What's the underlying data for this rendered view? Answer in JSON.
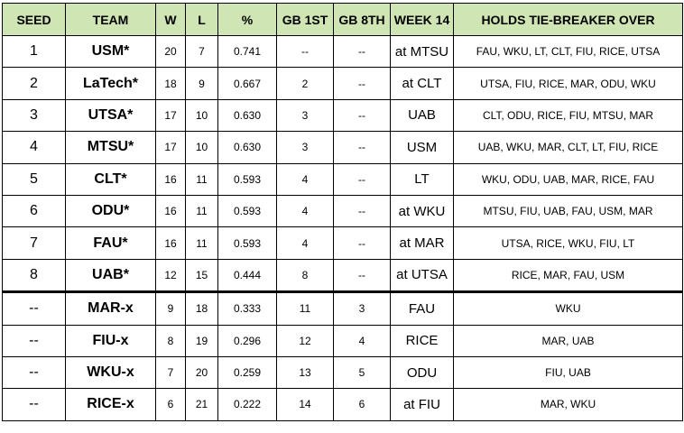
{
  "headers": {
    "seed": "SEED",
    "team": "TEAM",
    "w": "W",
    "l": "L",
    "pct": "%",
    "gb1": "GB 1ST",
    "gb8": "GB 8TH",
    "week": "WEEK 14",
    "tb": "HOLDS TIE-BREAKER OVER"
  },
  "rows": [
    {
      "seed": "1",
      "team": "USM*",
      "w": "20",
      "l": "7",
      "pct": "0.741",
      "gb1": "--",
      "gb8": "--",
      "week": "at MTSU",
      "tb": "FAU, WKU, LT, CLT, FIU, RICE, UTSA"
    },
    {
      "seed": "2",
      "team": "LaTech*",
      "w": "18",
      "l": "9",
      "pct": "0.667",
      "gb1": "2",
      "gb8": "--",
      "week": "at CLT",
      "tb": "UTSA, FIU, RICE, MAR, ODU, WKU"
    },
    {
      "seed": "3",
      "team": "UTSA*",
      "w": "17",
      "l": "10",
      "pct": "0.630",
      "gb1": "3",
      "gb8": "--",
      "week": "UAB",
      "tb": "CLT, ODU, RICE, FIU, MTSU, MAR"
    },
    {
      "seed": "4",
      "team": "MTSU*",
      "w": "17",
      "l": "10",
      "pct": "0.630",
      "gb1": "3",
      "gb8": "--",
      "week": "USM",
      "tb": "UAB, WKU, MAR, CLT, LT, FIU, RICE"
    },
    {
      "seed": "5",
      "team": "CLT*",
      "w": "16",
      "l": "11",
      "pct": "0.593",
      "gb1": "4",
      "gb8": "--",
      "week": "LT",
      "tb": "WKU, ODU, UAB, MAR, RICE, FAU"
    },
    {
      "seed": "6",
      "team": "ODU*",
      "w": "16",
      "l": "11",
      "pct": "0.593",
      "gb1": "4",
      "gb8": "--",
      "week": "at WKU",
      "tb": "MTSU, FIU, UAB, FAU, USM, MAR"
    },
    {
      "seed": "7",
      "team": "FAU*",
      "w": "16",
      "l": "11",
      "pct": "0.593",
      "gb1": "4",
      "gb8": "--",
      "week": "at MAR",
      "tb": "UTSA, RICE, WKU, FIU, LT"
    },
    {
      "seed": "8",
      "team": "UAB*",
      "w": "12",
      "l": "15",
      "pct": "0.444",
      "gb1": "8",
      "gb8": "--",
      "week": "at UTSA",
      "tb": "RICE, MAR, FAU, USM"
    },
    {
      "seed": "--",
      "team": "MAR-x",
      "w": "9",
      "l": "18",
      "pct": "0.333",
      "gb1": "11",
      "gb8": "3",
      "week": "FAU",
      "tb": "WKU"
    },
    {
      "seed": "--",
      "team": "FIU-x",
      "w": "8",
      "l": "19",
      "pct": "0.296",
      "gb1": "12",
      "gb8": "4",
      "week": "RICE",
      "tb": "MAR, UAB"
    },
    {
      "seed": "--",
      "team": "WKU-x",
      "w": "7",
      "l": "20",
      "pct": "0.259",
      "gb1": "13",
      "gb8": "5",
      "week": "ODU",
      "tb": "FIU, UAB"
    },
    {
      "seed": "--",
      "team": "RICE-x",
      "w": "6",
      "l": "21",
      "pct": "0.222",
      "gb1": "14",
      "gb8": "6",
      "week": "at FIU",
      "tb": "MAR, WKU"
    }
  ],
  "colors": {
    "header_bg": "#cfe5b3",
    "border": "#000000"
  }
}
